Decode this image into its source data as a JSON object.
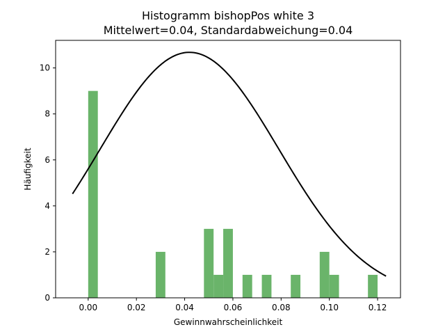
{
  "chart_data": {
    "type": "bar",
    "title": "Histogramm bishopPos white 3",
    "subtitle": "Mittelwert=0.04, Standardabweichung=0.04",
    "xlabel": "Gewinnwahrscheinlichkeit",
    "ylabel": "Häufigkeit",
    "xlim": [
      -0.0135,
      0.1295
    ],
    "ylim": [
      0,
      11.2
    ],
    "xticks": [
      0.0,
      0.02,
      0.04,
      0.06,
      0.08,
      0.1,
      0.12
    ],
    "xtick_labels": [
      "0.00",
      "0.02",
      "0.04",
      "0.06",
      "0.08",
      "0.10",
      "0.12"
    ],
    "yticks": [
      0,
      2,
      4,
      6,
      8,
      10
    ],
    "ytick_labels": [
      "0",
      "2",
      "4",
      "6",
      "8",
      "10"
    ],
    "grid": false,
    "bar_color": "#6ab46a",
    "curve_color": "#000000",
    "bin_width": 0.004,
    "bins": [
      {
        "start": 0.0,
        "end": 0.004,
        "count": 9
      },
      {
        "start": 0.028,
        "end": 0.032,
        "count": 2
      },
      {
        "start": 0.048,
        "end": 0.052,
        "count": 3
      },
      {
        "start": 0.052,
        "end": 0.056,
        "count": 1
      },
      {
        "start": 0.056,
        "end": 0.06,
        "count": 3
      },
      {
        "start": 0.064,
        "end": 0.068,
        "count": 1
      },
      {
        "start": 0.072,
        "end": 0.076,
        "count": 1
      },
      {
        "start": 0.084,
        "end": 0.088,
        "count": 1
      },
      {
        "start": 0.096,
        "end": 0.1,
        "count": 2
      },
      {
        "start": 0.1,
        "end": 0.104,
        "count": 1
      },
      {
        "start": 0.116,
        "end": 0.12,
        "count": 1
      }
    ],
    "normal_curve": {
      "mean": 0.042,
      "std": 0.037,
      "peak": 10.68,
      "x_range": [
        -0.0065,
        0.1235
      ]
    }
  }
}
